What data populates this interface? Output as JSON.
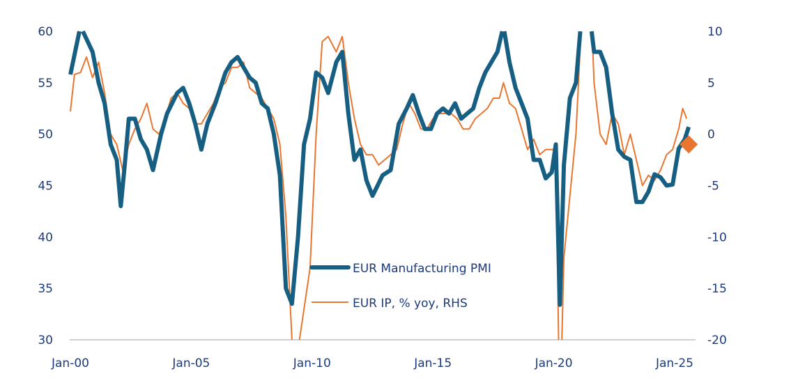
{
  "chart_data": {
    "type": "line",
    "title": "",
    "xlabel": "",
    "ylabel": "",
    "x_ticks": [
      "Jan-00",
      "Jan-05",
      "Jan-10",
      "Jan-15",
      "Jan-20",
      "Jan-25"
    ],
    "x_tick_years": [
      2000,
      2005,
      2010,
      2015,
      2020,
      2025
    ],
    "xlim": [
      "2000-01",
      "2025-12"
    ],
    "ylim_left": [
      30,
      60
    ],
    "y_ticks_left": [
      "60",
      "55",
      "50",
      "45",
      "40",
      "35",
      "30"
    ],
    "ylim_right": [
      -20,
      10
    ],
    "y_ticks_right": [
      "10",
      "5",
      "0",
      "-5",
      "-10",
      "-15",
      "-20"
    ],
    "grid": false,
    "legend_placement": "bottom-center",
    "colors": {
      "pmi": "#175f82",
      "ip": "#e8762f",
      "axis_text": "#1b3a7a",
      "axis_line": "#d0d0d0"
    },
    "series": [
      {
        "name": "EUR Manufacturing PMI",
        "axis": "left",
        "points": [
          [
            "2000-01",
            55.8
          ],
          [
            "2000-06",
            60.5
          ],
          [
            "2000-12",
            58
          ],
          [
            "2001-03",
            55
          ],
          [
            "2001-06",
            53
          ],
          [
            "2001-09",
            49
          ],
          [
            "2001-12",
            47.5
          ],
          [
            "2002-02",
            43
          ],
          [
            "2002-04",
            47
          ],
          [
            "2002-06",
            51.5
          ],
          [
            "2002-09",
            51.5
          ],
          [
            "2002-12",
            49.5
          ],
          [
            "2003-03",
            48.5
          ],
          [
            "2003-06",
            46.5
          ],
          [
            "2003-10",
            50
          ],
          [
            "2004-01",
            52
          ],
          [
            "2004-06",
            54
          ],
          [
            "2004-09",
            54.5
          ],
          [
            "2004-12",
            53
          ],
          [
            "2005-03",
            51
          ],
          [
            "2005-06",
            48.5
          ],
          [
            "2005-09",
            51
          ],
          [
            "2006-01",
            53
          ],
          [
            "2006-06",
            56
          ],
          [
            "2006-09",
            57
          ],
          [
            "2006-12",
            57.5
          ],
          [
            "2007-03",
            56.5
          ],
          [
            "2007-06",
            55.5
          ],
          [
            "2007-09",
            55
          ],
          [
            "2007-12",
            53
          ],
          [
            "2008-03",
            52.5
          ],
          [
            "2008-06",
            50
          ],
          [
            "2008-09",
            46
          ],
          [
            "2008-12",
            35
          ],
          [
            "2009-03",
            33.5
          ],
          [
            "2009-06",
            40
          ],
          [
            "2009-09",
            49
          ],
          [
            "2009-12",
            51.5
          ],
          [
            "2010-03",
            56
          ],
          [
            "2010-06",
            55.5
          ],
          [
            "2010-09",
            54
          ],
          [
            "2011-01",
            57
          ],
          [
            "2011-04",
            58
          ],
          [
            "2011-07",
            52
          ],
          [
            "2011-10",
            47.5
          ],
          [
            "2012-01",
            48.5
          ],
          [
            "2012-04",
            45.5
          ],
          [
            "2012-07",
            44
          ],
          [
            "2012-12",
            46
          ],
          [
            "2013-04",
            46.5
          ],
          [
            "2013-08",
            51
          ],
          [
            "2013-12",
            52.5
          ],
          [
            "2014-03",
            53.8
          ],
          [
            "2014-06",
            52
          ],
          [
            "2014-09",
            50.5
          ],
          [
            "2014-12",
            50.5
          ],
          [
            "2015-03",
            52
          ],
          [
            "2015-06",
            52.5
          ],
          [
            "2015-09",
            52
          ],
          [
            "2015-12",
            53
          ],
          [
            "2016-03",
            51.5
          ],
          [
            "2016-06",
            52
          ],
          [
            "2016-09",
            52.5
          ],
          [
            "2016-12",
            54.5
          ],
          [
            "2017-03",
            56
          ],
          [
            "2017-06",
            57
          ],
          [
            "2017-09",
            58
          ],
          [
            "2017-12",
            60.5
          ],
          [
            "2018-03",
            57
          ],
          [
            "2018-06",
            54.5
          ],
          [
            "2018-09",
            53
          ],
          [
            "2018-12",
            51.5
          ],
          [
            "2019-03",
            47.5
          ],
          [
            "2019-06",
            47.5
          ],
          [
            "2019-09",
            45.7
          ],
          [
            "2019-12",
            46.3
          ],
          [
            "2020-02",
            49
          ],
          [
            "2020-04",
            33.4
          ],
          [
            "2020-06",
            47
          ],
          [
            "2020-09",
            53.5
          ],
          [
            "2020-12",
            55
          ],
          [
            "2021-03",
            62
          ],
          [
            "2021-06",
            63
          ],
          [
            "2021-09",
            58
          ],
          [
            "2021-12",
            58
          ],
          [
            "2022-03",
            56.5
          ],
          [
            "2022-06",
            52
          ],
          [
            "2022-09",
            48.5
          ],
          [
            "2022-12",
            47.8
          ],
          [
            "2023-03",
            47.5
          ],
          [
            "2023-06",
            43.4
          ],
          [
            "2023-09",
            43.4
          ],
          [
            "2023-12",
            44.4
          ],
          [
            "2024-03",
            46.1
          ],
          [
            "2024-06",
            45.8
          ],
          [
            "2024-09",
            45
          ],
          [
            "2024-12",
            45.1
          ],
          [
            "2025-03",
            48.6
          ],
          [
            "2025-06",
            49.5
          ],
          [
            "2025-08",
            50.7
          ]
        ]
      },
      {
        "name": "EUR IP, % yoy, RHS",
        "axis": "right",
        "points": [
          [
            "2000-01",
            2.2
          ],
          [
            "2000-03",
            5.8
          ],
          [
            "2000-06",
            6
          ],
          [
            "2000-09",
            7.5
          ],
          [
            "2000-12",
            5.5
          ],
          [
            "2001-03",
            7
          ],
          [
            "2001-06",
            4
          ],
          [
            "2001-09",
            0
          ],
          [
            "2001-12",
            -1
          ],
          [
            "2002-03",
            -3.5
          ],
          [
            "2002-06",
            -1
          ],
          [
            "2002-09",
            0.5
          ],
          [
            "2002-12",
            1.5
          ],
          [
            "2003-03",
            3
          ],
          [
            "2003-06",
            0.5
          ],
          [
            "2003-09",
            0
          ],
          [
            "2003-12",
            1.5
          ],
          [
            "2004-03",
            3.5
          ],
          [
            "2004-06",
            4
          ],
          [
            "2004-09",
            3
          ],
          [
            "2004-12",
            2.5
          ],
          [
            "2005-03",
            1
          ],
          [
            "2005-06",
            1
          ],
          [
            "2005-09",
            2
          ],
          [
            "2005-12",
            3
          ],
          [
            "2006-03",
            4.5
          ],
          [
            "2006-06",
            5
          ],
          [
            "2006-09",
            6.5
          ],
          [
            "2006-12",
            6.5
          ],
          [
            "2007-03",
            7
          ],
          [
            "2007-06",
            4.5
          ],
          [
            "2007-09",
            4
          ],
          [
            "2007-12",
            3.5
          ],
          [
            "2008-03",
            2.5
          ],
          [
            "2008-06",
            1.5
          ],
          [
            "2008-09",
            -1
          ],
          [
            "2008-12",
            -8
          ],
          [
            "2009-03",
            -20
          ],
          [
            "2009-06",
            -21
          ],
          [
            "2009-09",
            -17
          ],
          [
            "2009-12",
            -13
          ],
          [
            "2010-03",
            0
          ],
          [
            "2010-06",
            9
          ],
          [
            "2010-09",
            9.5
          ],
          [
            "2011-01",
            8
          ],
          [
            "2011-04",
            9.5
          ],
          [
            "2011-07",
            5
          ],
          [
            "2011-10",
            1.5
          ],
          [
            "2012-01",
            -1
          ],
          [
            "2012-04",
            -2
          ],
          [
            "2012-07",
            -2
          ],
          [
            "2012-10",
            -3
          ],
          [
            "2013-01",
            -2.5
          ],
          [
            "2013-04",
            -2
          ],
          [
            "2013-07",
            -1.5
          ],
          [
            "2013-10",
            1
          ],
          [
            "2014-01",
            3
          ],
          [
            "2014-04",
            2
          ],
          [
            "2014-07",
            0.5
          ],
          [
            "2014-10",
            0.5
          ],
          [
            "2015-01",
            1.5
          ],
          [
            "2015-04",
            2
          ],
          [
            "2015-07",
            2
          ],
          [
            "2015-10",
            2
          ],
          [
            "2016-01",
            1.5
          ],
          [
            "2016-04",
            0.5
          ],
          [
            "2016-07",
            0.5
          ],
          [
            "2016-10",
            1.5
          ],
          [
            "2017-01",
            2
          ],
          [
            "2017-04",
            2.5
          ],
          [
            "2017-07",
            3.5
          ],
          [
            "2017-10",
            3.5
          ],
          [
            "2017-12",
            5
          ],
          [
            "2018-03",
            3
          ],
          [
            "2018-06",
            2.5
          ],
          [
            "2018-09",
            0.5
          ],
          [
            "2018-12",
            -1.5
          ],
          [
            "2019-03",
            -0.5
          ],
          [
            "2019-06",
            -2
          ],
          [
            "2019-09",
            -1.5
          ],
          [
            "2019-12",
            -1.5
          ],
          [
            "2020-02",
            -1.5
          ],
          [
            "2020-04",
            -28
          ],
          [
            "2020-06",
            -12
          ],
          [
            "2020-09",
            -6
          ],
          [
            "2020-12",
            0
          ],
          [
            "2021-03",
            12
          ],
          [
            "2021-05",
            25
          ],
          [
            "2021-09",
            5
          ],
          [
            "2021-12",
            0
          ],
          [
            "2022-03",
            -1
          ],
          [
            "2022-06",
            2
          ],
          [
            "2022-09",
            1
          ],
          [
            "2022-12",
            -2
          ],
          [
            "2023-03",
            0
          ],
          [
            "2023-06",
            -2.5
          ],
          [
            "2023-09",
            -5
          ],
          [
            "2023-12",
            -4
          ],
          [
            "2024-03",
            -4.5
          ],
          [
            "2024-06",
            -3.5
          ],
          [
            "2024-09",
            -2
          ],
          [
            "2024-12",
            -1.5
          ],
          [
            "2025-03",
            0.5
          ],
          [
            "2025-05",
            2.5
          ],
          [
            "2025-07",
            1.5
          ]
        ]
      }
    ],
    "annotations": [
      {
        "type": "diamond-marker",
        "series": "EUR IP, % yoy, RHS",
        "date": "2025-08",
        "value": -1.0
      }
    ]
  }
}
